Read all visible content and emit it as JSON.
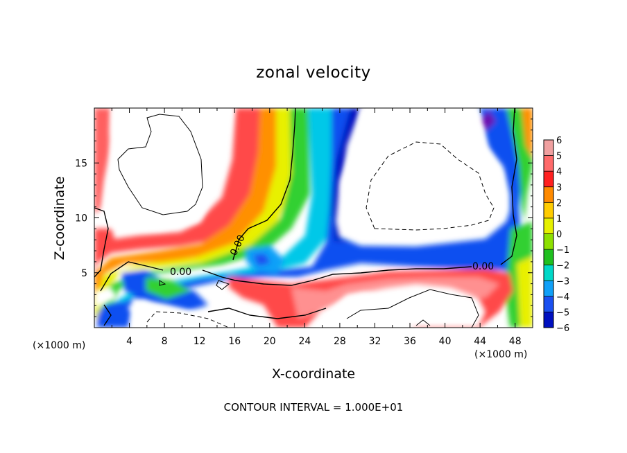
{
  "chart_data": {
    "type": "heatmap",
    "title": "zonal velocity",
    "xlabel": "X-coordinate",
    "ylabel": "Z-coordinate",
    "x_unit": "(×1000 m)",
    "x_unit_right": "(×1000 m)",
    "xlim": [
      0,
      50
    ],
    "ylim": [
      0,
      20
    ],
    "xticks": [
      4,
      8,
      12,
      16,
      20,
      24,
      28,
      32,
      36,
      40,
      44,
      48
    ],
    "yticks": [
      5,
      10,
      15
    ],
    "colorbar": {
      "levels": [
        6,
        5,
        4,
        3,
        2,
        1,
        0,
        -1,
        -2,
        -3,
        -4,
        -5,
        -6
      ],
      "labels": [
        "6",
        "5",
        "4",
        "3",
        "2",
        "1",
        "0",
        "−1",
        "−2",
        "−3",
        "−4",
        "−5",
        "−6"
      ],
      "colors": [
        "#f0a0a0",
        "#ff6a6a",
        "#ff2020",
        "#ff8a00",
        "#ffcc00",
        "#e6f000",
        "#8de000",
        "#20c020",
        "#00d8c8",
        "#10a0f8",
        "#1a50f0",
        "#0010c0",
        "#6a10b0"
      ]
    },
    "contour_labels": [
      "0.00",
      "0.00",
      "0.00"
    ],
    "contour_interval_text": "CONTOUR INTERVAL = 1.000E+01",
    "grid": false
  }
}
